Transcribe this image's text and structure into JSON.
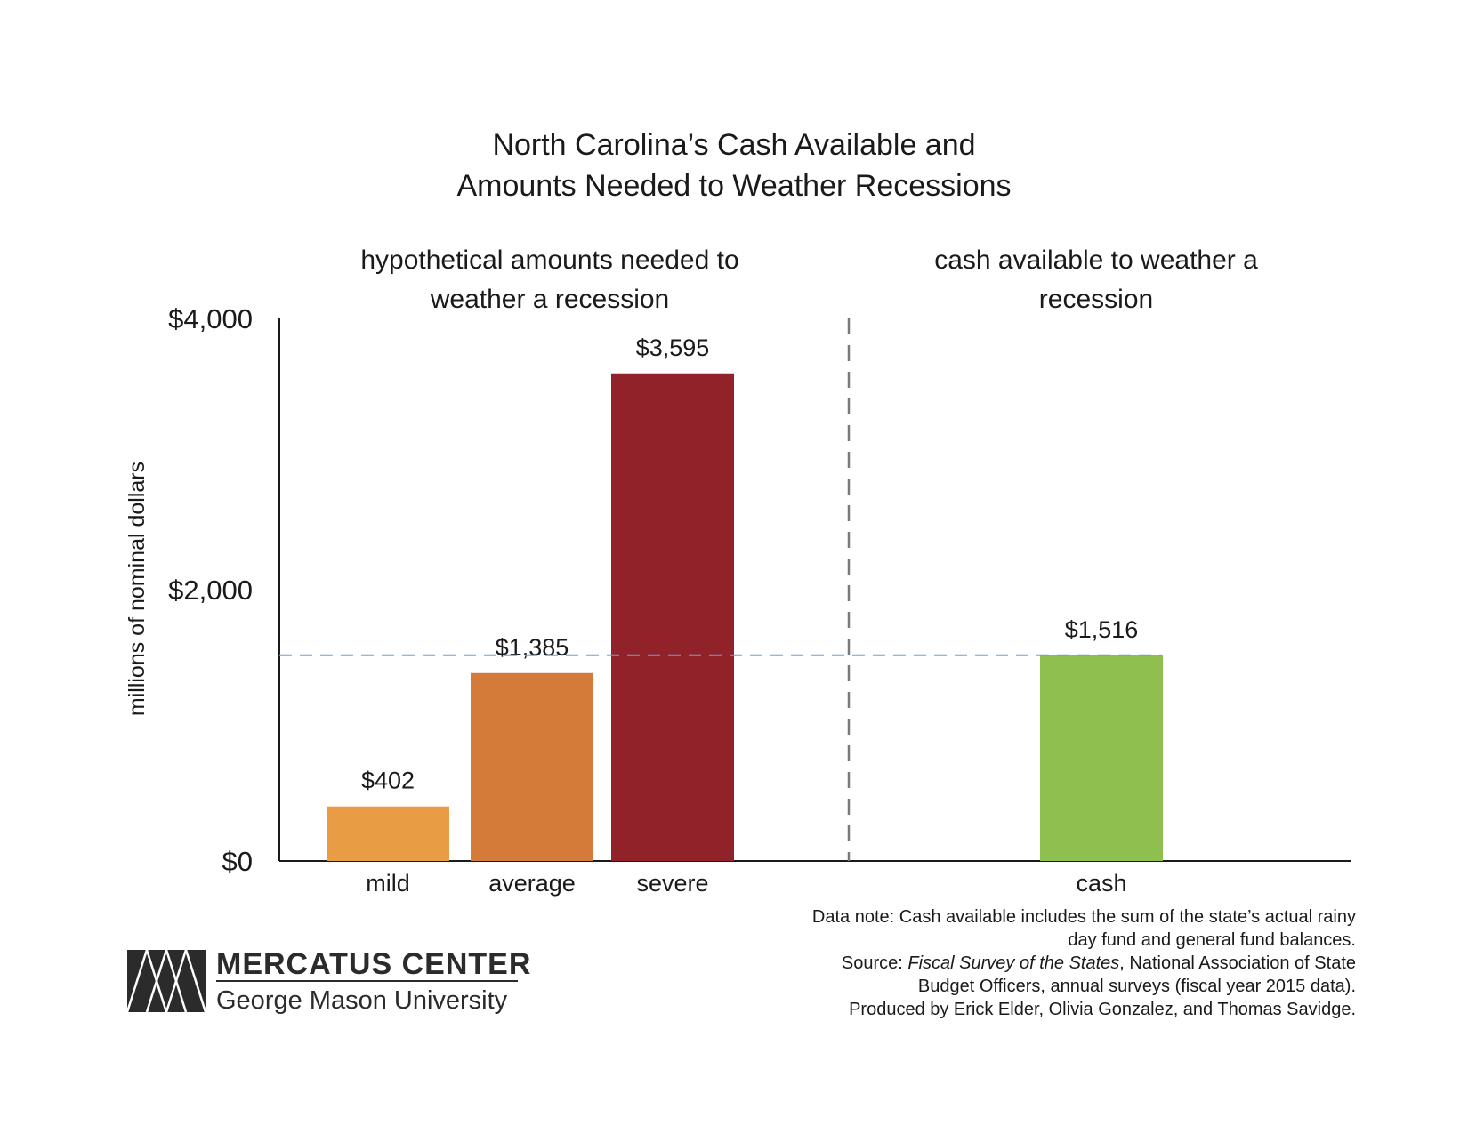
{
  "title_lines": [
    "North Carolina’s Cash Available and",
    "Amounts Needed to Weather Recessions"
  ],
  "panels": {
    "left": [
      "hypothetical amounts needed to",
      "weather a recession"
    ],
    "right": [
      "cash available to weather a",
      "recession"
    ]
  },
  "chart_data": {
    "type": "bar",
    "categories": [
      "mild",
      "average",
      "severe",
      "cash"
    ],
    "values": [
      402,
      1385,
      3595,
      1516
    ],
    "value_labels": [
      "$402",
      "$1,385",
      "$3,595",
      "$1,516"
    ],
    "colors": [
      "#e89c43",
      "#d47b3a",
      "#912229",
      "#8fbf4f"
    ],
    "ylabel": "millions of nominal dollars",
    "ylim": [
      0,
      4000
    ],
    "yticks": [
      0,
      2000,
      4000
    ],
    "ytick_labels": [
      "$0",
      "$2,000",
      "$4,000"
    ],
    "reference_line": {
      "value": 1516,
      "color": "#6f9fd8",
      "style": "dashed"
    },
    "divider": {
      "style": "dashed",
      "color": "#7a7a7a"
    },
    "grid": false,
    "legend": "none"
  },
  "note": {
    "line1": "Data note: Cash available includes the sum of the state’s actual rainy",
    "line2": "day fund and general fund balances.",
    "line3_prefix": "Source: ",
    "line3_italic": "Fiscal Survey of the States",
    "line3_suffix": ", National Association of State",
    "line4": "Budget Officers, annual surveys (fiscal year 2015 data).",
    "line5": "Produced by Erick Elder, Olivia Gonzalez, and Thomas Savidge."
  },
  "logo": {
    "line1": "MERCATUS CENTER",
    "line2": "George Mason University",
    "color": "#2b2b2b"
  }
}
